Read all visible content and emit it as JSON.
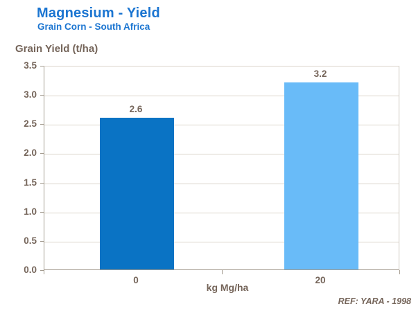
{
  "header": {
    "title": "Magnesium - Yield",
    "subtitle": "Grain Corn - South Africa"
  },
  "chart_data": {
    "type": "bar",
    "title": "Magnesium - Yield",
    "subtitle": "Grain Corn - South Africa",
    "ylabel": "Grain Yield (t/ha)",
    "xlabel": "kg Mg/ha",
    "categories": [
      "0",
      "20"
    ],
    "values": [
      2.6,
      3.2
    ],
    "data_labels": [
      "2.6",
      "3.2"
    ],
    "bar_colors": [
      "#0A73C4",
      "#69BBF8"
    ],
    "ylim": [
      0,
      3.5
    ],
    "ytick_step": 0.5,
    "yticks": [
      "3.5",
      "3.0",
      "2.5",
      "2.0",
      "1.5",
      "1.0",
      "0.5",
      "0.0"
    ],
    "grid": true,
    "legend": false,
    "colors": {
      "title_blue": "#1B75D1",
      "label_brown": "#75655A",
      "gridline": "#DAD4CA",
      "axis_line": "#A39B8F",
      "plot_right_border": "#CCC6BD"
    }
  },
  "footer": {
    "ref": "REF: YARA - 1998"
  }
}
